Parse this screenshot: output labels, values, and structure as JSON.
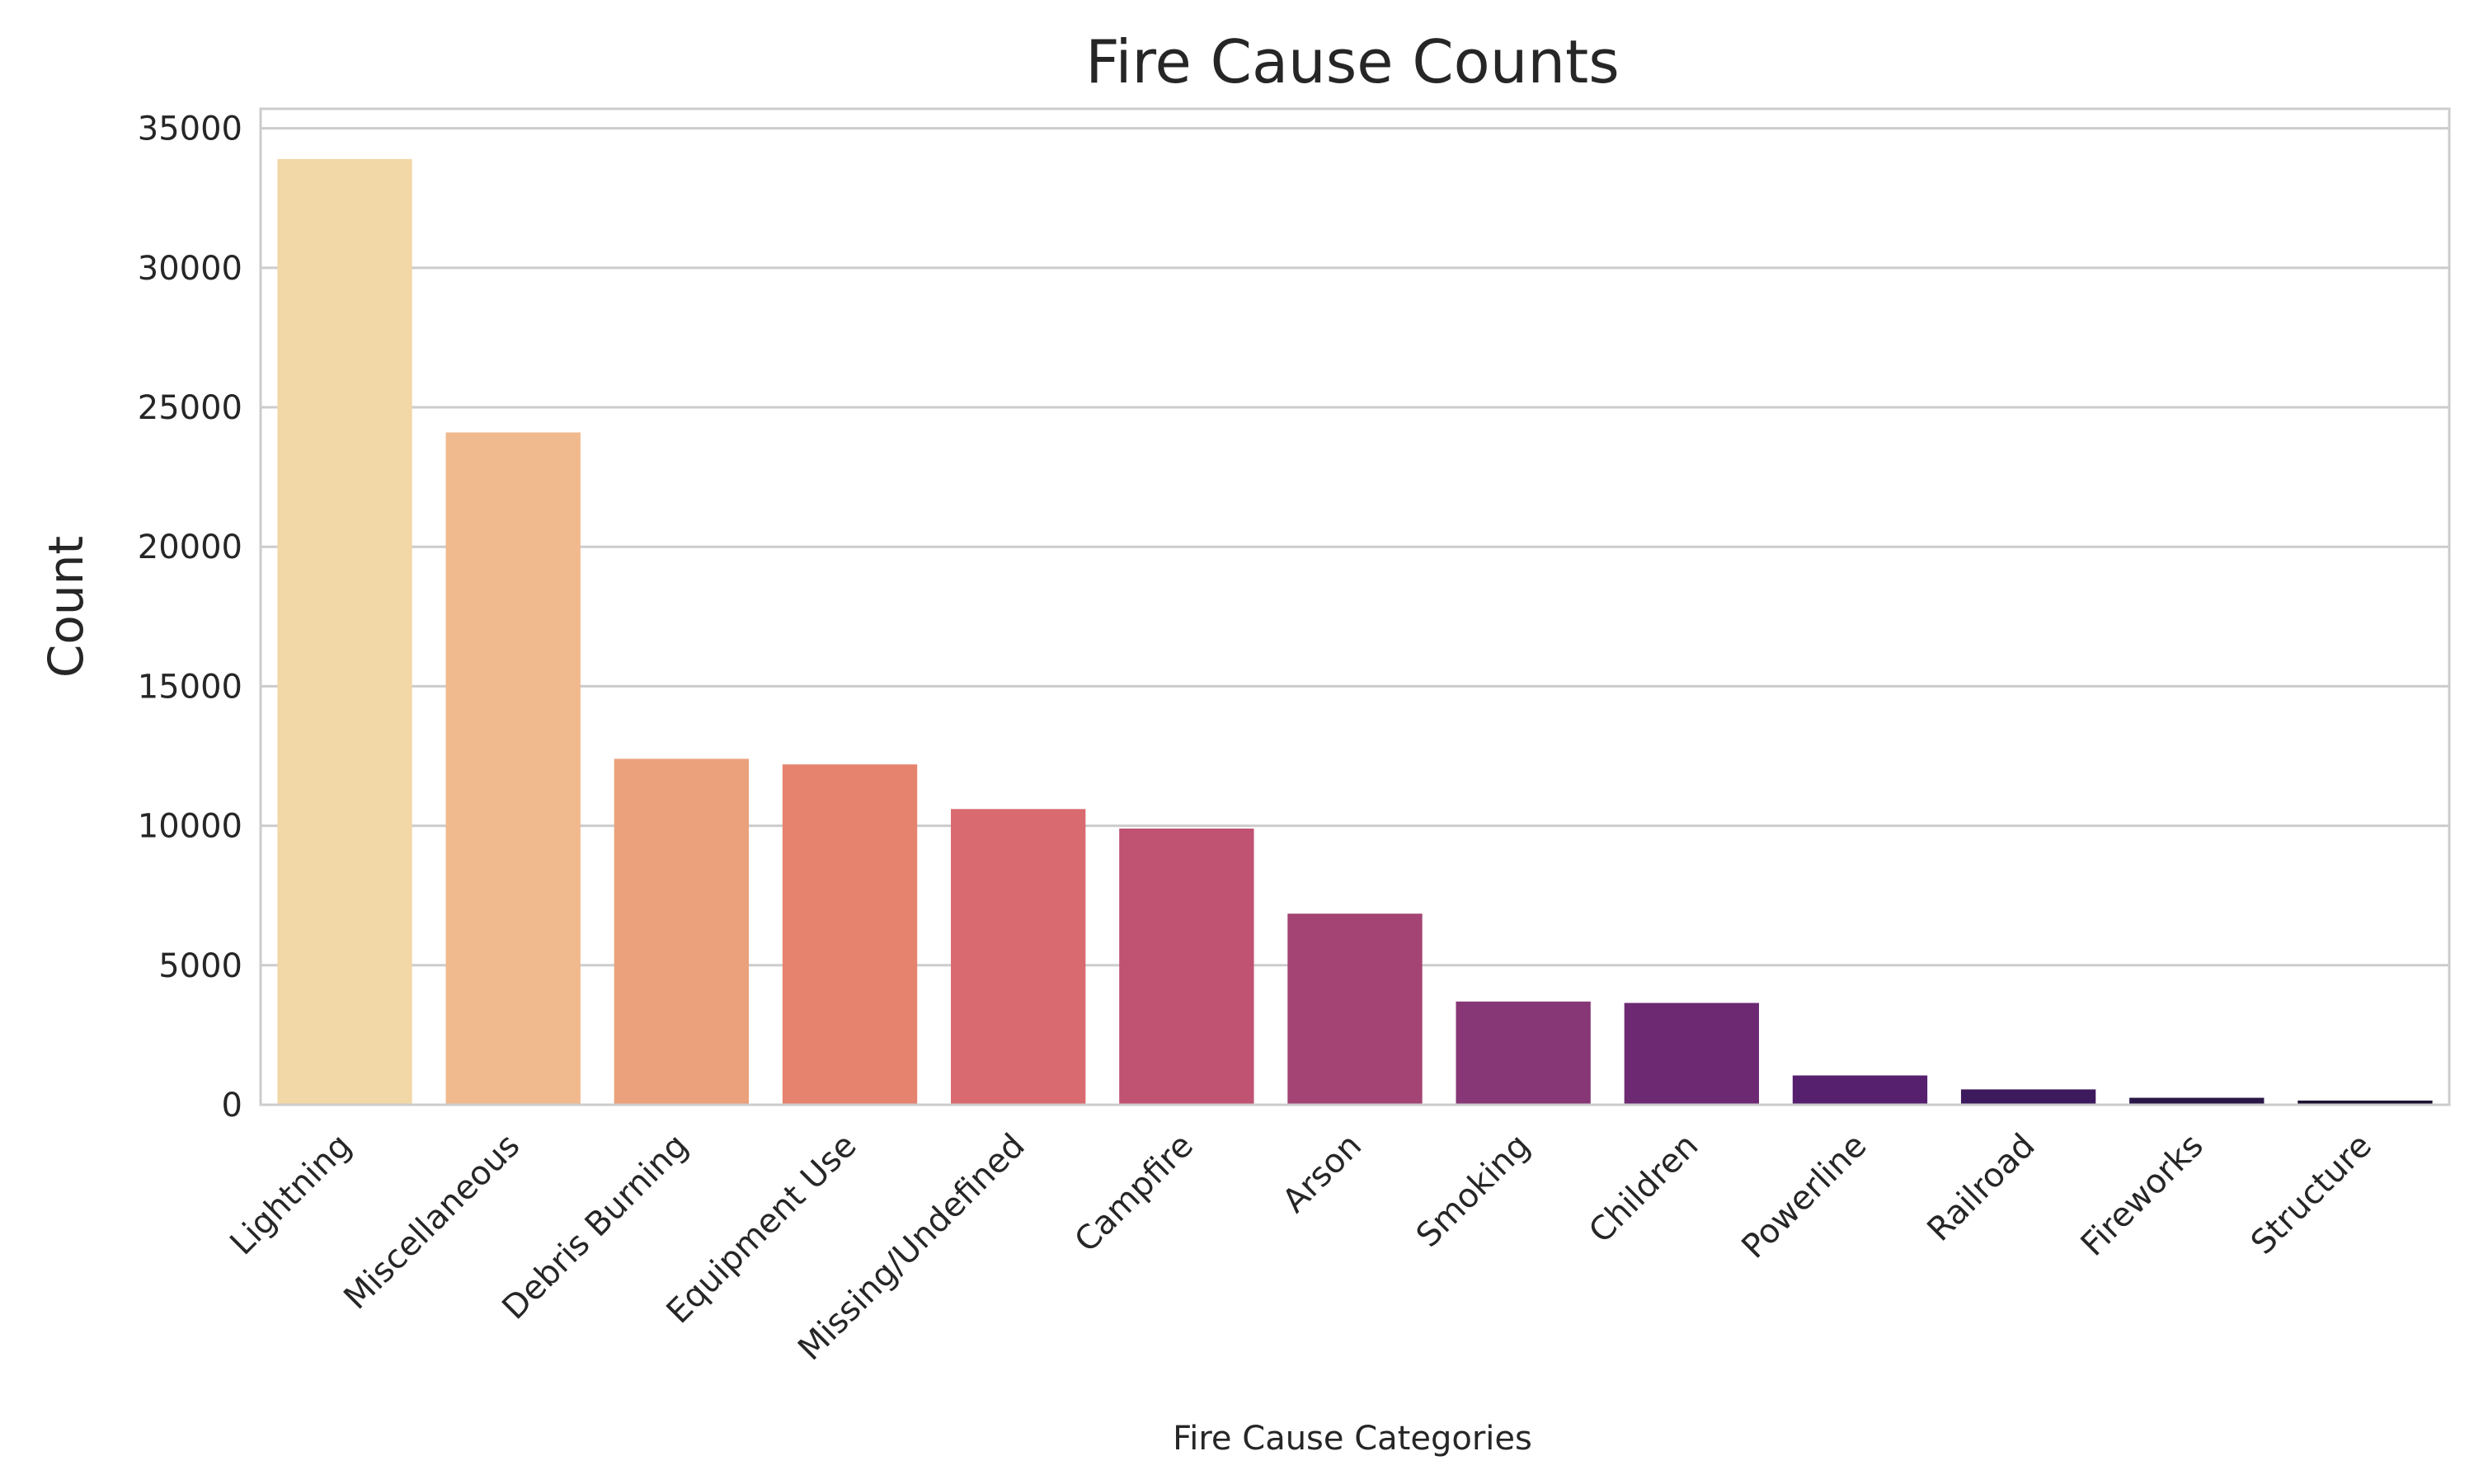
{
  "chart_data": {
    "type": "bar",
    "title": "Fire Cause Counts",
    "xlabel": "Fire Cause Categories",
    "ylabel": "Count",
    "categories": [
      "Lightning",
      "Miscellaneous",
      "Debris Burning",
      "Equipment Use",
      "Missing/Undefined",
      "Campfire",
      "Arson",
      "Smoking",
      "Children",
      "Powerline",
      "Railroad",
      "Fireworks",
      "Structure"
    ],
    "values": [
      33900,
      24100,
      12400,
      12200,
      10600,
      9900,
      6850,
      3700,
      3650,
      1050,
      550,
      250,
      150
    ],
    "colors": [
      "#f2d7a7",
      "#f0b98e",
      "#eba17b",
      "#e6836f",
      "#d96a6f",
      "#c05272",
      "#a34474",
      "#873775",
      "#6d2a72",
      "#56206f",
      "#3d1a5e",
      "#2a1748",
      "#1a1130"
    ],
    "yticks": [
      0,
      5000,
      10000,
      15000,
      20000,
      25000,
      30000,
      35000
    ],
    "ylim": [
      0,
      35700
    ],
    "grid": true,
    "legend": "none"
  }
}
